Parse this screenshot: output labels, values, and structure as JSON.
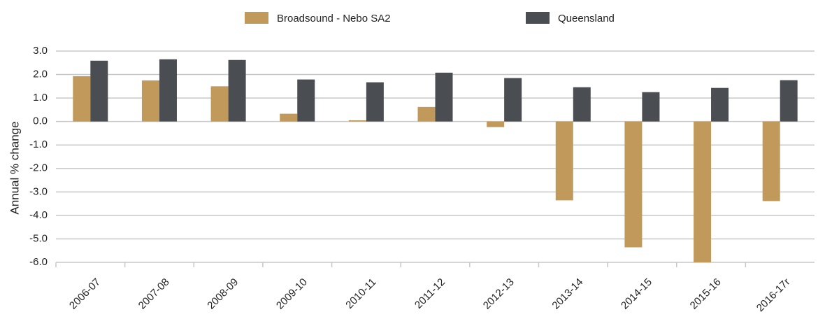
{
  "chart_data": {
    "type": "bar",
    "y_label": "Annual % change",
    "categories": [
      "2006-07",
      "2007-08",
      "2008-09",
      "2009-10",
      "2010-11",
      "2011-12",
      "2012-13",
      "2013-14",
      "2014-15",
      "2015-16",
      "2016-17r"
    ],
    "series": [
      {
        "name": "Broadsound - Nebo SA2",
        "color": "#c19a5b",
        "values": [
          1.93,
          1.75,
          1.5,
          0.33,
          0.05,
          0.62,
          -0.24,
          -3.36,
          -5.36,
          -6.0,
          -3.39
        ]
      },
      {
        "name": "Queensland",
        "color": "#4a4d52",
        "values": [
          2.59,
          2.65,
          2.62,
          1.79,
          1.67,
          2.08,
          1.85,
          1.46,
          1.25,
          1.43,
          1.76
        ]
      }
    ],
    "ylim": [
      -6,
      3
    ],
    "yticks": [
      {
        "value": -6,
        "label": "-6.0"
      },
      {
        "value": -5,
        "label": "-5.0"
      },
      {
        "value": -4,
        "label": "-4.0"
      },
      {
        "value": -3,
        "label": "-3.0"
      },
      {
        "value": -2,
        "label": "-2.0"
      },
      {
        "value": -1,
        "label": "-1.0"
      },
      {
        "value": 0,
        "label": "0.0"
      },
      {
        "value": 1,
        "label": "1.0"
      },
      {
        "value": 2,
        "label": "2.0"
      },
      {
        "value": 3,
        "label": "3.0"
      }
    ],
    "grid": true,
    "legend": "top"
  }
}
